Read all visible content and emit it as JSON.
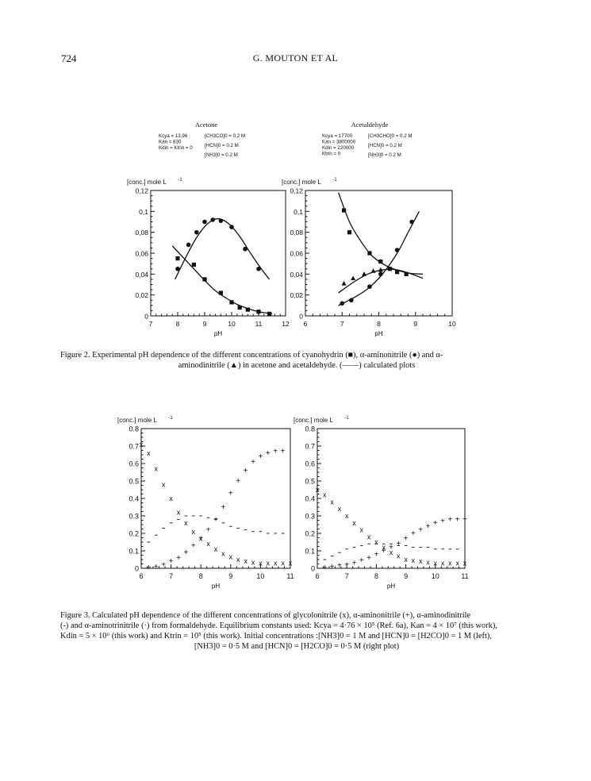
{
  "header": {
    "page_number": "724",
    "running_title": "G. MOUTON ET AL"
  },
  "figure2": {
    "caption_line1": "Figure 2. Experimental pH dependence of the different concentrations of cyanohydrin (■), α-aminonitrile (●) and α-",
    "caption_line2": "aminodinitrile (▲) in acetone and acetaldehyde. (——) calculated plots",
    "plots": [
      {
        "title": "Acetone",
        "constants_left": [
          "Kcya = 13.96",
          "Kan = 830",
          "Kdin = Ktrin = 0"
        ],
        "constants_right": [
          "[CH3CO]0 = 0.2 M",
          "[HCN]0 = 0.2 M",
          "[NH3]0 = 0.2 M"
        ],
        "ylabel": "[conc.] mole L",
        "ylabel_sup": "-1",
        "xlabel": "pH",
        "xlim": [
          7,
          12
        ],
        "ylim": [
          0,
          0.12
        ],
        "yticks": [
          "0",
          "0,02",
          "0,04",
          "0,06",
          "0,08",
          "0,1",
          "0,12"
        ],
        "xticks": [
          "7",
          "8",
          "9",
          "10",
          "11",
          "12"
        ]
      },
      {
        "title": "Acetaldehyde",
        "constants_left": [
          "Kcya = 17700",
          "Kan = 3800000",
          "Kdin = 220000",
          "Ktrin = 0"
        ],
        "constants_right": [
          "[CH3CHO]0 = 0.2 M",
          "[HCN]0 = 0.2 M",
          "[NH3]0 = 0.2 M"
        ],
        "ylabel": "[conc.] mole L",
        "ylabel_sup": "-1",
        "xlabel": "pH",
        "xlim": [
          6,
          10
        ],
        "ylim": [
          0,
          0.12
        ],
        "yticks": [
          "0",
          "0,02",
          "0,04",
          "0,06",
          "0,08",
          "0,1",
          "0,12"
        ],
        "xticks": [
          "6",
          "7",
          "8",
          "9",
          "10"
        ]
      }
    ]
  },
  "figure3": {
    "caption_lines": [
      "Figure 3. Calculated pH dependence of the different concentrations of glycolonitrile (x), α-aminonitrile (+), α-aminodinitrile",
      "(-) and α-aminotrinitrile (·) from formaldehyde. Equilibrium constants used: Kcya = 4·76 × 10⁵ (Ref. 6a), Kan = 4 × 10⁷ (this work),",
      "Kdin = 5 × 10⁶ (this work) and Ktrin = 10⁵ (this work). Initial concentrations :[NH3]0 = 1 M and [HCN]0 = [H2CO]0 = 1 M (left),",
      "[NH3]0 = 0·5 M and [HCN]0 = [H2CO]0 = 0·5 M (right plot)"
    ],
    "plots": [
      {
        "ylabel": "[conc.] mole L",
        "ylabel_sup": "-1",
        "xlabel": "pH",
        "xlim": [
          6,
          11
        ],
        "ylim": [
          0,
          0.8
        ],
        "yticks": [
          "0",
          "0.1",
          "0.2",
          "0.3",
          "0.4",
          "0.5",
          "0.6",
          "0.7",
          "0.8"
        ],
        "xticks": [
          "6",
          "7",
          "8",
          "9",
          "10",
          "11"
        ]
      },
      {
        "ylabel": "[conc.] mole L",
        "ylabel_sup": "-1",
        "xlabel": "pH",
        "xlim": [
          6,
          11
        ],
        "ylim": [
          0,
          0.8
        ],
        "yticks": [
          "0",
          "0.1",
          "0.2",
          "0.3",
          "0.4",
          "0.5",
          "0.6",
          "0.7",
          "0.8"
        ],
        "xticks": [
          "6",
          "7",
          "8",
          "9",
          "10",
          "11"
        ]
      }
    ]
  },
  "chart_data": [
    {
      "type": "scatter",
      "xlabel": "pH",
      "ylabel": "[conc.] mole L-1",
      "xlim": [
        7,
        12
      ],
      "ylim": [
        0,
        0.12
      ],
      "series": [
        {
          "name": "cyanohydrin",
          "marker": "square",
          "points": [
            [
              8.0,
              0.055
            ],
            [
              8.6,
              0.049
            ],
            [
              9.0,
              0.035
            ],
            [
              9.6,
              0.022
            ],
            [
              10.0,
              0.013
            ],
            [
              10.3,
              0.008
            ],
            [
              10.6,
              0.006
            ],
            [
              11.0,
              0.004
            ],
            [
              11.4,
              0.002
            ]
          ]
        },
        {
          "name": "α-aminonitrile",
          "marker": "circle",
          "points": [
            [
              8.0,
              0.045
            ],
            [
              8.4,
              0.068
            ],
            [
              8.7,
              0.08
            ],
            [
              9.0,
              0.09
            ],
            [
              9.3,
              0.092
            ],
            [
              9.6,
              0.091
            ],
            [
              10.0,
              0.085
            ],
            [
              10.5,
              0.064
            ],
            [
              11.0,
              0.045
            ]
          ]
        }
      ],
      "curves": [
        {
          "name": "cyanohydrin calc",
          "points": [
            [
              7.8,
              0.067
            ],
            [
              8.2,
              0.056
            ],
            [
              8.6,
              0.045
            ],
            [
              9.0,
              0.034
            ],
            [
              9.4,
              0.024
            ],
            [
              9.8,
              0.017
            ],
            [
              10.2,
              0.011
            ],
            [
              10.6,
              0.007
            ],
            [
              11.0,
              0.004
            ],
            [
              11.5,
              0.002
            ]
          ]
        },
        {
          "name": "α-aminonitrile calc",
          "points": [
            [
              7.9,
              0.035
            ],
            [
              8.3,
              0.056
            ],
            [
              8.7,
              0.075
            ],
            [
              9.1,
              0.088
            ],
            [
              9.5,
              0.093
            ],
            [
              9.9,
              0.088
            ],
            [
              10.3,
              0.076
            ],
            [
              10.7,
              0.06
            ],
            [
              11.1,
              0.045
            ],
            [
              11.4,
              0.035
            ]
          ]
        }
      ]
    },
    {
      "type": "scatter",
      "xlabel": "pH",
      "ylabel": "[conc.] mole L-1",
      "xlim": [
        6,
        10
      ],
      "ylim": [
        0,
        0.12
      ],
      "series": [
        {
          "name": "cyanohydrin",
          "marker": "square",
          "points": [
            [
              7.05,
              0.101
            ],
            [
              7.2,
              0.08
            ],
            [
              7.75,
              0.06
            ],
            [
              8.05,
              0.052
            ],
            [
              8.3,
              0.045
            ],
            [
              8.5,
              0.042
            ],
            [
              8.75,
              0.04
            ]
          ]
        },
        {
          "name": "α-aminonitrile",
          "marker": "circle",
          "points": [
            [
              7.0,
              0.012
            ],
            [
              7.25,
              0.015
            ],
            [
              7.75,
              0.028
            ],
            [
              8.05,
              0.04
            ],
            [
              8.5,
              0.063
            ],
            [
              8.9,
              0.09
            ]
          ]
        },
        {
          "name": "α-aminodinitrile",
          "marker": "triangle",
          "points": [
            [
              7.05,
              0.031
            ],
            [
              7.3,
              0.036
            ],
            [
              7.6,
              0.04
            ],
            [
              7.85,
              0.043
            ],
            [
              8.05,
              0.044
            ]
          ]
        }
      ],
      "curves": [
        {
          "name": "cyanohydrin calc",
          "points": [
            [
              6.9,
              0.118
            ],
            [
              7.2,
              0.09
            ],
            [
              7.5,
              0.072
            ],
            [
              7.8,
              0.058
            ],
            [
              8.1,
              0.05
            ],
            [
              8.4,
              0.045
            ],
            [
              8.8,
              0.041
            ],
            [
              9.2,
              0.04
            ]
          ]
        },
        {
          "name": "α-aminonitrile calc",
          "points": [
            [
              6.9,
              0.01
            ],
            [
              7.3,
              0.017
            ],
            [
              7.7,
              0.026
            ],
            [
              8.1,
              0.04
            ],
            [
              8.5,
              0.06
            ],
            [
              8.8,
              0.08
            ],
            [
              9.1,
              0.1
            ]
          ]
        },
        {
          "name": "α-aminodinitrile calc",
          "points": [
            [
              6.9,
              0.022
            ],
            [
              7.3,
              0.032
            ],
            [
              7.7,
              0.04
            ],
            [
              8.1,
              0.044
            ],
            [
              8.5,
              0.044
            ],
            [
              8.9,
              0.04
            ],
            [
              9.2,
              0.036
            ]
          ]
        }
      ]
    },
    {
      "type": "scatter",
      "xlabel": "pH",
      "ylabel": "[conc.] mole L-1",
      "xlim": [
        6,
        11
      ],
      "ylim": [
        0,
        0.8
      ],
      "series": [
        {
          "name": "glycolonitrile",
          "marker": "x",
          "points": [
            [
              6.0,
              0.71
            ],
            [
              6.25,
              0.66
            ],
            [
              6.5,
              0.57
            ],
            [
              6.75,
              0.48
            ],
            [
              7.0,
              0.4
            ],
            [
              7.25,
              0.32
            ],
            [
              7.5,
              0.26
            ],
            [
              7.75,
              0.21
            ],
            [
              8.0,
              0.17
            ],
            [
              8.25,
              0.14
            ],
            [
              8.5,
              0.11
            ],
            [
              8.75,
              0.085
            ],
            [
              9.0,
              0.065
            ],
            [
              9.25,
              0.05
            ],
            [
              9.5,
              0.04
            ],
            [
              9.75,
              0.035
            ],
            [
              10.0,
              0.03
            ],
            [
              10.25,
              0.03
            ],
            [
              10.5,
              0.03
            ],
            [
              10.75,
              0.03
            ],
            [
              11.0,
              0.03
            ]
          ]
        },
        {
          "name": "α-aminonitrile",
          "marker": "plus",
          "points": [
            [
              6.25,
              0.005
            ],
            [
              6.5,
              0.01
            ],
            [
              6.75,
              0.02
            ],
            [
              7.0,
              0.04
            ],
            [
              7.25,
              0.06
            ],
            [
              7.5,
              0.09
            ],
            [
              7.75,
              0.13
            ],
            [
              8.0,
              0.17
            ],
            [
              8.25,
              0.22
            ],
            [
              8.5,
              0.28
            ],
            [
              8.75,
              0.35
            ],
            [
              9.0,
              0.43
            ],
            [
              9.25,
              0.5
            ],
            [
              9.5,
              0.56
            ],
            [
              9.75,
              0.61
            ],
            [
              10.0,
              0.64
            ],
            [
              10.25,
              0.66
            ],
            [
              10.5,
              0.67
            ],
            [
              10.75,
              0.67
            ]
          ]
        },
        {
          "name": "α-aminodinitrile",
          "marker": "dash",
          "points": [
            [
              6.25,
              0.15
            ],
            [
              6.5,
              0.19
            ],
            [
              6.75,
              0.23
            ],
            [
              7.0,
              0.26
            ],
            [
              7.25,
              0.28
            ],
            [
              7.5,
              0.3
            ],
            [
              7.75,
              0.3
            ],
            [
              8.0,
              0.3
            ],
            [
              8.25,
              0.29
            ],
            [
              8.5,
              0.28
            ],
            [
              8.75,
              0.26
            ],
            [
              9.0,
              0.24
            ],
            [
              9.25,
              0.23
            ],
            [
              9.5,
              0.22
            ],
            [
              9.75,
              0.21
            ],
            [
              10.0,
              0.21
            ],
            [
              10.25,
              0.2
            ],
            [
              10.5,
              0.2
            ],
            [
              10.75,
              0.2
            ]
          ]
        }
      ]
    },
    {
      "type": "scatter",
      "xlabel": "pH",
      "ylabel": "[conc.] mole L-1",
      "xlim": [
        6,
        11
      ],
      "ylim": [
        0,
        0.8
      ],
      "series": [
        {
          "name": "glycolonitrile",
          "marker": "x",
          "points": [
            [
              6.0,
              0.45
            ],
            [
              6.25,
              0.42
            ],
            [
              6.5,
              0.38
            ],
            [
              6.75,
              0.34
            ],
            [
              7.0,
              0.3
            ],
            [
              7.25,
              0.26
            ],
            [
              7.5,
              0.22
            ],
            [
              7.75,
              0.18
            ],
            [
              8.0,
              0.15
            ],
            [
              8.25,
              0.12
            ],
            [
              8.5,
              0.09
            ],
            [
              8.75,
              0.07
            ],
            [
              9.0,
              0.05
            ],
            [
              9.25,
              0.045
            ],
            [
              9.5,
              0.04
            ],
            [
              9.75,
              0.035
            ],
            [
              10.0,
              0.03
            ],
            [
              10.25,
              0.03
            ],
            [
              10.5,
              0.03
            ],
            [
              10.75,
              0.03
            ],
            [
              11.0,
              0.03
            ]
          ]
        },
        {
          "name": "α-aminonitrile",
          "marker": "plus",
          "points": [
            [
              6.25,
              0.005
            ],
            [
              6.5,
              0.01
            ],
            [
              6.75,
              0.015
            ],
            [
              7.0,
              0.02
            ],
            [
              7.25,
              0.03
            ],
            [
              7.5,
              0.045
            ],
            [
              7.75,
              0.06
            ],
            [
              8.0,
              0.08
            ],
            [
              8.25,
              0.1
            ],
            [
              8.5,
              0.12
            ],
            [
              8.75,
              0.14
            ],
            [
              9.0,
              0.17
            ],
            [
              9.25,
              0.2
            ],
            [
              9.5,
              0.22
            ],
            [
              9.75,
              0.24
            ],
            [
              10.0,
              0.26
            ],
            [
              10.25,
              0.27
            ],
            [
              10.5,
              0.28
            ],
            [
              10.75,
              0.28
            ],
            [
              11.0,
              0.28
            ]
          ]
        },
        {
          "name": "α-aminodinitrile",
          "marker": "dash",
          "points": [
            [
              6.25,
              0.05
            ],
            [
              6.5,
              0.07
            ],
            [
              6.75,
              0.09
            ],
            [
              7.0,
              0.11
            ],
            [
              7.25,
              0.12
            ],
            [
              7.5,
              0.13
            ],
            [
              7.75,
              0.14
            ],
            [
              8.0,
              0.14
            ],
            [
              8.25,
              0.14
            ],
            [
              8.5,
              0.14
            ],
            [
              8.75,
              0.13
            ],
            [
              9.0,
              0.13
            ],
            [
              9.25,
              0.12
            ],
            [
              9.5,
              0.12
            ],
            [
              9.75,
              0.12
            ],
            [
              10.0,
              0.11
            ],
            [
              10.25,
              0.11
            ],
            [
              10.5,
              0.11
            ],
            [
              10.75,
              0.11
            ]
          ]
        }
      ]
    }
  ]
}
